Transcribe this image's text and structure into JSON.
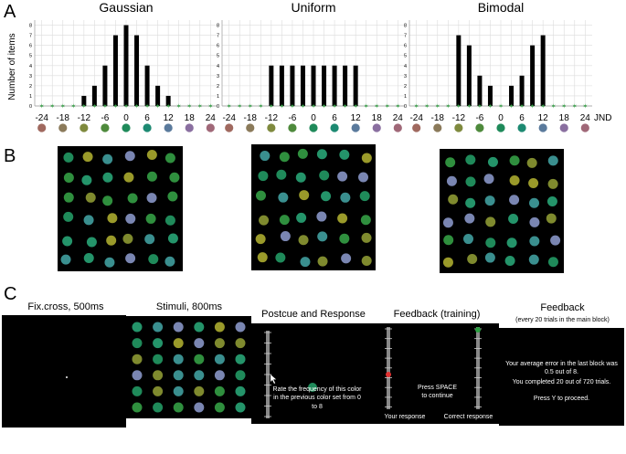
{
  "panels": {
    "a": "A",
    "b": "B",
    "c": "C"
  },
  "axes": {
    "ylabel": "Number of items",
    "unit": "JND",
    "y_ticks": [
      "0",
      "1",
      "2",
      "3",
      "4",
      "5",
      "6",
      "7",
      "8"
    ],
    "x_ticks": [
      "-24",
      "-18",
      "-12",
      "-6",
      "0",
      "6",
      "12",
      "18",
      "24"
    ]
  },
  "chart_data": [
    {
      "type": "bar",
      "title": "Gaussian",
      "x": [
        -24,
        -21,
        -18,
        -15,
        -12,
        -9,
        -6,
        -3,
        0,
        3,
        6,
        9,
        12,
        15,
        18,
        21,
        24
      ],
      "values": [
        0,
        0,
        0,
        0,
        1,
        2,
        4,
        7,
        8,
        7,
        4,
        2,
        1,
        0,
        0,
        0,
        0
      ],
      "ylim": [
        0,
        8.5
      ],
      "xlim": [
        -26,
        26
      ],
      "grid": true
    },
    {
      "type": "bar",
      "title": "Uniform",
      "x": [
        -24,
        -21,
        -18,
        -15,
        -12,
        -9,
        -6,
        -3,
        0,
        3,
        6,
        9,
        12,
        15,
        18,
        21,
        24
      ],
      "values": [
        0,
        0,
        0,
        0,
        4,
        4,
        4,
        4,
        4,
        4,
        4,
        4,
        4,
        0,
        0,
        0,
        0
      ],
      "ylim": [
        0,
        8.5
      ],
      "xlim": [
        -26,
        26
      ],
      "grid": true
    },
    {
      "type": "bar",
      "title": "Bimodal",
      "x": [
        -24,
        -21,
        -18,
        -15,
        -12,
        -9,
        -6,
        -3,
        0,
        3,
        6,
        9,
        12,
        15,
        18,
        21,
        24
      ],
      "values": [
        0,
        0,
        0,
        0,
        7,
        6,
        3,
        2,
        0,
        2,
        3,
        6,
        7,
        0,
        0,
        0,
        0
      ],
      "ylim": [
        0,
        8.5
      ],
      "xlim": [
        -26,
        26
      ],
      "grid": true
    }
  ],
  "color_swatches": [
    "#a0695f",
    "#8b7a5a",
    "#7f8a3e",
    "#4e8a3c",
    "#1f8a5a",
    "#1d8a72",
    "#2a8a8c",
    "#5a7a9c",
    "#8a6fa0",
    "#a06878"
  ],
  "stimuli_palette": [
    "#1f8a5a",
    "#2f8f3e",
    "#7f8a2e",
    "#9a9a2a",
    "#3a8f8f",
    "#7a86b2",
    "#24946a"
  ],
  "panel_c": {
    "screens": [
      {
        "label": "Fix.cross, 500ms"
      },
      {
        "label": "Stimuli, 800ms"
      },
      {
        "label": "Postcue and Response",
        "text": "Rate the frequency of this color in the previous color set from 0 to 8"
      },
      {
        "label": "Feedback (training)",
        "center": "Press SPACE\nto continue",
        "left": "Your response",
        "right": "Correct response"
      },
      {
        "label": "Feedback",
        "sub": "(every 20 trials in the main block)",
        "line1": "Your average error in the last block was 0.5 out of 8.",
        "line2": "You completed 20 out of 720 trials.",
        "line3": "Press Y to proceed."
      }
    ]
  }
}
